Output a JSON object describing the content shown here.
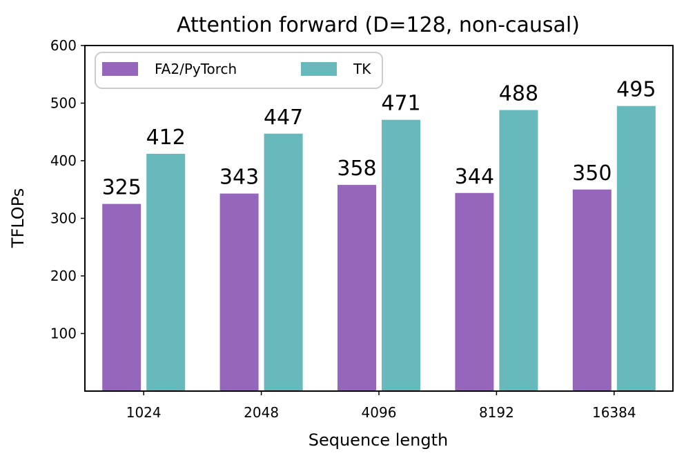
{
  "chart_data": {
    "type": "bar",
    "title": "Attention forward (D=128, non-causal)",
    "xlabel": "Sequence length",
    "ylabel": "TFLOPs",
    "categories": [
      "1024",
      "2048",
      "4096",
      "8192",
      "16384"
    ],
    "series": [
      {
        "name": "FA2/PyTorch",
        "values": [
          325,
          343,
          358,
          344,
          350
        ],
        "color": "#9467bd"
      },
      {
        "name": "TK",
        "values": [
          412,
          447,
          471,
          488,
          495
        ],
        "color": "#67b9bc"
      }
    ],
    "ylim": [
      0,
      600
    ],
    "yticks": [
      "100",
      "200",
      "300",
      "400",
      "500",
      "600"
    ],
    "data_labels": [
      [
        "325",
        "343",
        "358",
        "344",
        "350"
      ],
      [
        "412",
        "447",
        "471",
        "488",
        "495"
      ]
    ],
    "grid": false,
    "legend_position": "top-left"
  }
}
